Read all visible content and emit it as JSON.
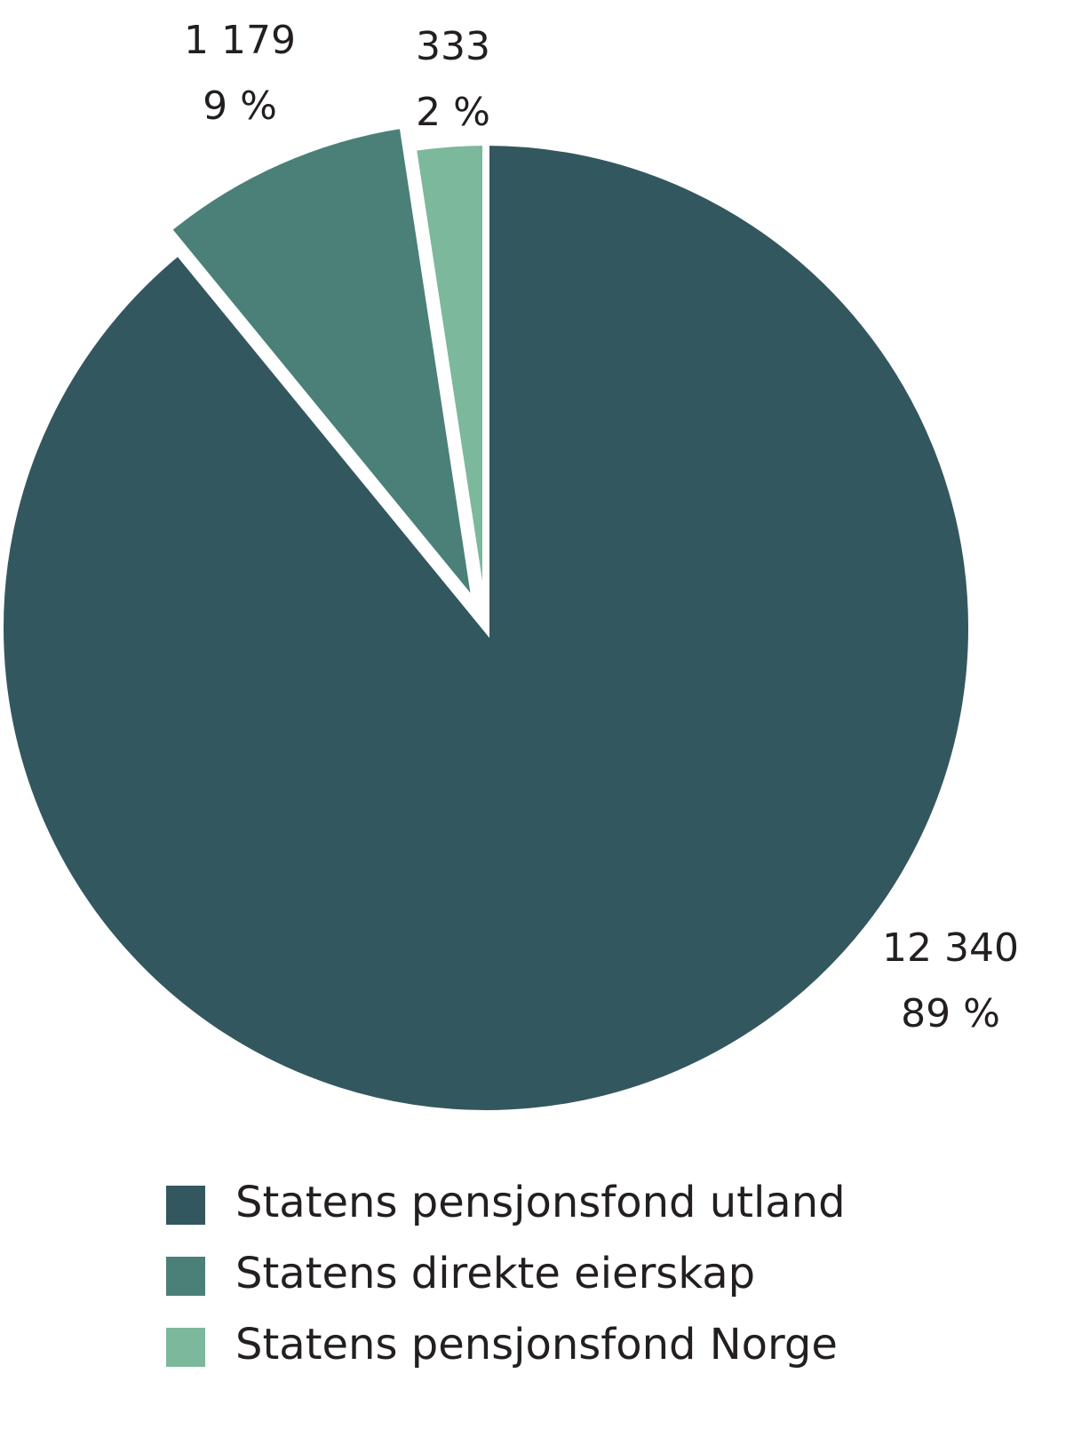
{
  "chart_data": {
    "type": "pie",
    "categories": [
      "Statens pensjonsfond utland",
      "Statens direkte eierskap",
      "Statens pensjonsfond Norge"
    ],
    "values": [
      12340,
      1179,
      333
    ],
    "value_labels": [
      "12 340",
      "1 179",
      "333"
    ],
    "percentages": [
      89,
      9,
      2
    ],
    "percentage_labels": [
      "89 %",
      "9 %",
      "2 %"
    ],
    "colors": [
      "#33575f",
      "#4a8078",
      "#7cb89b"
    ],
    "exploded": [
      false,
      true,
      false
    ],
    "legend": "bottom"
  }
}
